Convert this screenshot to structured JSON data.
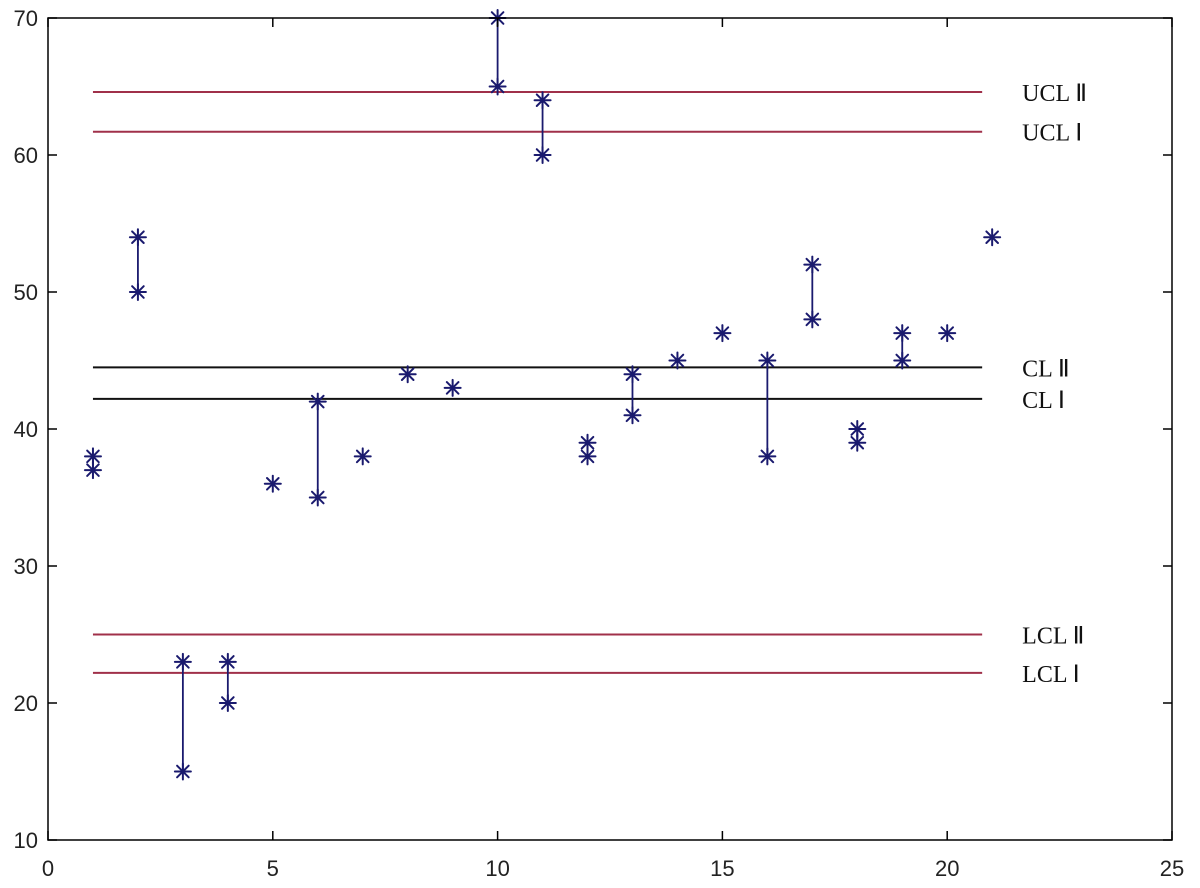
{
  "chart_data": {
    "type": "scatter",
    "xlim": [
      0,
      25
    ],
    "ylim": [
      10,
      70
    ],
    "xticks": [
      "0",
      "5",
      "10",
      "15",
      "20",
      "25"
    ],
    "yticks": [
      "10",
      "20",
      "30",
      "40",
      "50",
      "60",
      "70"
    ],
    "grid": false,
    "marker": "*",
    "colors": {
      "points": "#1a1a6e",
      "control_limits": "#a0304a",
      "center_lines": "#111111",
      "axes": "#000000"
    },
    "points": [
      {
        "x": 1,
        "y": [
          38,
          37
        ]
      },
      {
        "x": 2,
        "y": [
          54,
          50
        ]
      },
      {
        "x": 3,
        "y": [
          23,
          15
        ]
      },
      {
        "x": 4,
        "y": [
          23,
          20
        ]
      },
      {
        "x": 5,
        "y": [
          36
        ]
      },
      {
        "x": 6,
        "y": [
          42,
          35
        ]
      },
      {
        "x": 7,
        "y": [
          38
        ]
      },
      {
        "x": 8,
        "y": [
          44
        ]
      },
      {
        "x": 9,
        "y": [
          43
        ]
      },
      {
        "x": 10,
        "y": [
          70,
          65
        ]
      },
      {
        "x": 11,
        "y": [
          64,
          60
        ]
      },
      {
        "x": 12,
        "y": [
          39,
          38
        ]
      },
      {
        "x": 13,
        "y": [
          44,
          41
        ]
      },
      {
        "x": 14,
        "y": [
          45
        ]
      },
      {
        "x": 15,
        "y": [
          47
        ]
      },
      {
        "x": 16,
        "y": [
          45,
          38
        ]
      },
      {
        "x": 17,
        "y": [
          52,
          48
        ]
      },
      {
        "x": 18,
        "y": [
          40,
          39
        ]
      },
      {
        "x": 19,
        "y": [
          47,
          45
        ]
      },
      {
        "x": 20,
        "y": [
          47
        ]
      },
      {
        "x": 21,
        "y": [
          54
        ]
      }
    ],
    "reference_lines": [
      {
        "label": "UCL Ⅱ",
        "y": 64.6,
        "x_range": [
          1,
          21
        ],
        "kind": "limit"
      },
      {
        "label": "UCL Ⅰ",
        "y": 61.7,
        "x_range": [
          1,
          21
        ],
        "kind": "limit"
      },
      {
        "label": "CL Ⅱ",
        "y": 44.5,
        "x_range": [
          1,
          21
        ],
        "kind": "center"
      },
      {
        "label": "CL Ⅰ",
        "y": 42.2,
        "x_range": [
          1,
          21
        ],
        "kind": "center"
      },
      {
        "label": "LCL Ⅱ",
        "y": 25.0,
        "x_range": [
          1,
          21
        ],
        "kind": "limit"
      },
      {
        "label": "LCL Ⅰ",
        "y": 22.2,
        "x_range": [
          1,
          21
        ],
        "kind": "limit"
      }
    ]
  }
}
